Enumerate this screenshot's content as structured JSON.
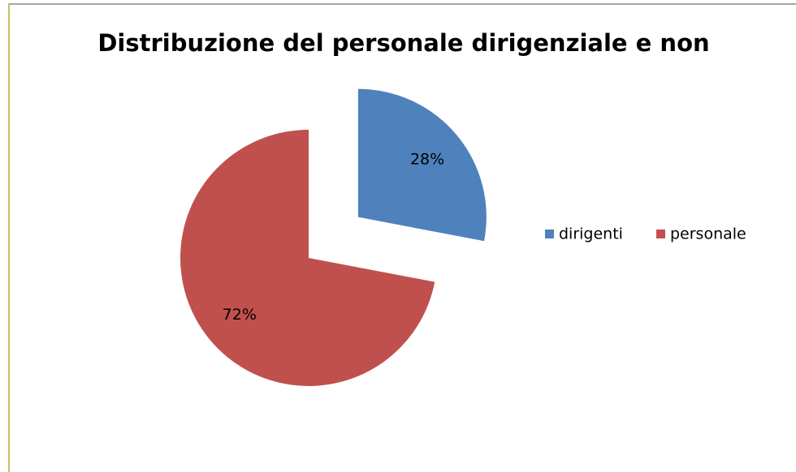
{
  "chart_data": {
    "type": "pie",
    "title": "Distribuzione del personale dirigenziale e non",
    "categories": [
      "dirigenti",
      "personale"
    ],
    "values": [
      28,
      72
    ],
    "value_labels": [
      "28%",
      "72%"
    ],
    "colors": [
      "#4f81bd",
      "#c0504d"
    ],
    "legend": "right"
  }
}
